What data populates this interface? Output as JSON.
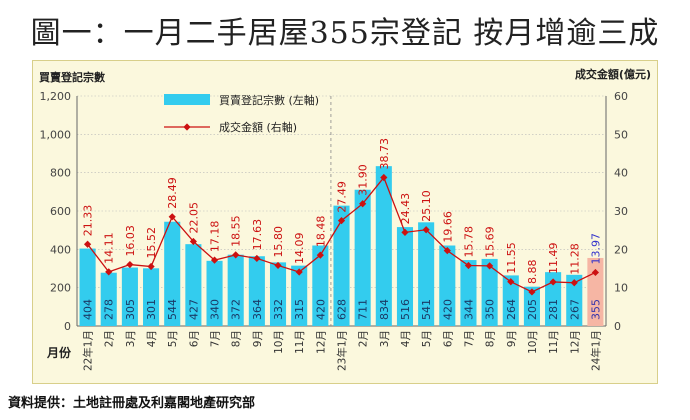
{
  "title": "圖一：一月二手居屋355宗登記 按月增逾三成",
  "source": "資料提供：土地註冊處及利嘉閣地產研究部",
  "chart_data": {
    "type": "bar+line",
    "left_axis_title": "買賣登記宗數",
    "right_axis_title": "成交金額(億元)",
    "x_axis_title": "月份",
    "legend": {
      "bar": "買賣登記宗數 (左軸)",
      "line": "成交金額 (右軸)"
    },
    "categories": [
      "22年1月",
      "2月",
      "3月",
      "4月",
      "5月",
      "6月",
      "7月",
      "8月",
      "9月",
      "10月",
      "11月",
      "12月",
      "23年1月",
      "2月",
      "3月",
      "4月",
      "5月",
      "6月",
      "7月",
      "8月",
      "9月",
      "10月",
      "11月",
      "12月",
      "24年1月"
    ],
    "bar_values": [
      404,
      278,
      305,
      301,
      544,
      427,
      340,
      372,
      364,
      332,
      315,
      420,
      628,
      711,
      834,
      516,
      541,
      420,
      344,
      350,
      264,
      205,
      281,
      267,
      355
    ],
    "line_values": [
      21.33,
      14.11,
      16.03,
      15.52,
      28.49,
      22.05,
      17.18,
      18.55,
      17.63,
      15.8,
      14.09,
      18.48,
      27.49,
      31.9,
      38.73,
      24.43,
      25.1,
      19.66,
      15.78,
      15.69,
      11.55,
      8.88,
      11.49,
      11.28,
      13.97
    ],
    "left_ylim": [
      0,
      1200
    ],
    "left_ticks": [
      "0",
      "200",
      "400",
      "600",
      "800",
      "1,000",
      "1,200"
    ],
    "right_ylim": [
      0,
      60
    ],
    "right_ticks": [
      "0",
      "10",
      "20",
      "30",
      "40",
      "50",
      "60"
    ],
    "bar_color": "#33ccee",
    "highlight_bar_color": "#f6b6a4",
    "line_color": "#cc1111",
    "last_line_label_color": "#3333cc"
  }
}
